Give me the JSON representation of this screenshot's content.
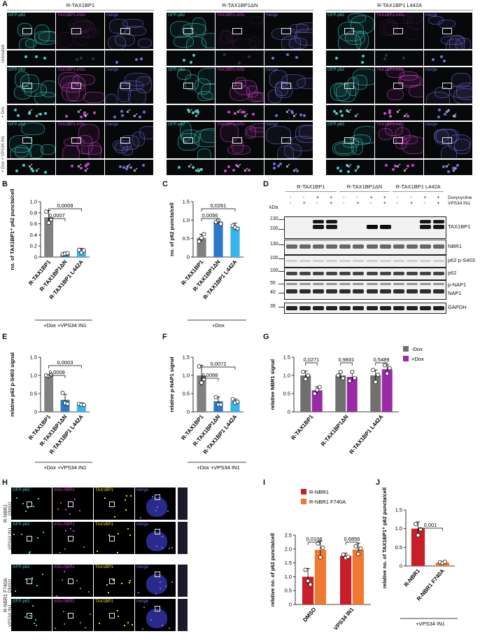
{
  "panel_letters": {
    "A": "A",
    "B": "B",
    "C": "C",
    "D": "D",
    "E": "E",
    "F": "F",
    "G": "G",
    "H": "H",
    "I": "I",
    "J": "J"
  },
  "panel_A": {
    "groups": [
      "R-TAX1BP1",
      "R-TAX1BP1ΔN",
      "R-TAX1BP1 L442A"
    ],
    "rows": [
      "Untreated",
      "+ Dox",
      "+ Dox + VPS34 IN1"
    ],
    "channels": [
      "GFP-p62",
      "TAX1BP1-mSc",
      "merge"
    ],
    "colors": {
      "gfp": "#3fd0c8",
      "msc": "#d040d0",
      "merge": "#7a6ad8"
    }
  },
  "panel_D": {
    "groups": [
      "R-TAX1BP1",
      "R-TAX1BP1ΔN",
      "R-TAX1BP1 L442A"
    ],
    "kda_label": "kDa",
    "treat_labels": [
      "Doxycycline",
      "VPS34 IN1"
    ],
    "dox_signs": [
      "-",
      "-",
      "+",
      "+"
    ],
    "vps_signs": [
      "-",
      "+",
      "-",
      "+"
    ],
    "blots": [
      {
        "label": "TAX1BP1",
        "markers": [
          "130",
          "100"
        ]
      },
      {
        "label": "NBR1",
        "markers": [
          "130"
        ]
      },
      {
        "label": "p62 p-S403",
        "markers": [
          "100"
        ]
      },
      {
        "label": "p62",
        "markers": [
          "100"
        ]
      },
      {
        "label": "p-NAP1",
        "label2": "NAP1",
        "markers": [
          "55",
          "40"
        ]
      },
      {
        "label": "GAPDH",
        "markers": [
          "35"
        ]
      }
    ]
  },
  "panel_H": {
    "rows": [
      "DMSO",
      "VPS34 IN1",
      "DMSO",
      "VPS34 IN1"
    ],
    "group_labels": [
      "R-NBR1",
      "R-NBR1 F740A"
    ],
    "channels": [
      "GFP-p62",
      "mSc-NBR1",
      "TAX1BP1",
      "merge"
    ]
  },
  "chart_data": [
    {
      "panel": "B",
      "type": "bar",
      "ylabel": "no. of TAX1BP1⁺ p62 puncta/cell",
      "categories": [
        "R-TAX1BP1",
        "R-TAX1BP1ΔN",
        "R-TAX1BP1 L442A"
      ],
      "values": [
        0.72,
        0.06,
        0.11
      ],
      "errors": [
        0.12,
        0.03,
        0.05
      ],
      "points": [
        [
          0.82,
          0.62,
          0.68
        ],
        [
          0.05,
          0.06,
          0.07
        ],
        [
          0.13,
          0.08,
          0.12
        ]
      ],
      "ylim": [
        0,
        1.0
      ],
      "yticks": [
        "0",
        "0.2",
        "0.4",
        "0.6",
        "0.8",
        "1.0"
      ],
      "colors": [
        "#808080",
        "#2a78c8",
        "#36b4ec"
      ],
      "treatment": "+Dox +VPS34 IN1",
      "pvalues": [
        {
          "from": 0,
          "to": 1,
          "text": "0,0007"
        },
        {
          "from": 0,
          "to": 2,
          "text": "0,0009"
        }
      ]
    },
    {
      "panel": "C",
      "type": "bar",
      "ylabel": "no. of p62 puncta/cell",
      "categories": [
        "R-TAX1BP1",
        "R-TAX1BP1ΔN",
        "R-TAX1BP1 L442A"
      ],
      "values": [
        0.52,
        0.96,
        0.82
      ],
      "errors": [
        0.1,
        0.05,
        0.1
      ],
      "points": [
        [
          0.42,
          0.52,
          0.62
        ],
        [
          0.95,
          1.0,
          0.9
        ],
        [
          0.85,
          0.8,
          0.77
        ]
      ],
      "ylim": [
        0,
        1.5
      ],
      "yticks": [
        "0",
        "0.5",
        "1.0",
        "1.5"
      ],
      "colors": [
        "#808080",
        "#2a78c8",
        "#36b4ec"
      ],
      "treatment": "+Dox",
      "pvalues": [
        {
          "from": 0,
          "to": 1,
          "text": "0,0056"
        },
        {
          "from": 0,
          "to": 2,
          "text": "0,0261"
        }
      ]
    },
    {
      "panel": "E",
      "type": "bar",
      "ylabel": "relative p62 p-S403 signal",
      "categories": [
        "R-TAX1BP1",
        "R-TAX1BP1ΔN",
        "R-TAX1BP1 L442A"
      ],
      "values": [
        1.0,
        0.33,
        0.21
      ],
      "errors": [
        0.03,
        0.15,
        0.04
      ],
      "points": [
        [
          1.0,
          0.98,
          1.02
        ],
        [
          0.52,
          0.24,
          0.22
        ],
        [
          0.22,
          0.2,
          0.19
        ]
      ],
      "ylim": [
        0,
        1.5
      ],
      "yticks": [
        "0",
        "0.5",
        "1.0",
        "1.5"
      ],
      "colors": [
        "#808080",
        "#2a78c8",
        "#36b4ec"
      ],
      "treatment": "+Dox +VPS34 IN1",
      "pvalues": [
        {
          "from": 0,
          "to": 1,
          "text": "0,0008"
        },
        {
          "from": 0,
          "to": 2,
          "text": "0,0003"
        }
      ]
    },
    {
      "panel": "F",
      "type": "bar",
      "ylabel": "relative p-NAP1 signal",
      "categories": [
        "R-TAX1BP1",
        "R-TAX1BP1ΔN",
        "R-TAX1BP1 L442A"
      ],
      "values": [
        1.0,
        0.29,
        0.29
      ],
      "errors": [
        0.28,
        0.12,
        0.06
      ],
      "points": [
        [
          1.25,
          0.8,
          0.9
        ],
        [
          0.4,
          0.2,
          0.2
        ],
        [
          0.35,
          0.25,
          0.28
        ]
      ],
      "ylim": [
        0,
        1.5
      ],
      "yticks": [
        "0",
        "0.5",
        "1.0",
        "1.5"
      ],
      "colors": [
        "#808080",
        "#2a78c8",
        "#36b4ec"
      ],
      "treatment": "+Dox +VPS34 IN1",
      "pvalues": [
        {
          "from": 0,
          "to": 1,
          "text": "0,0068"
        },
        {
          "from": 0,
          "to": 2,
          "text": "0,0072"
        }
      ]
    },
    {
      "panel": "G",
      "type": "bar",
      "ylabel": "relative NBR1 signal",
      "categories": [
        "R-TAX1BP1",
        "R-TAX1BP1ΔN",
        "R-TAX1BP1 L442A"
      ],
      "series": [
        {
          "name": "-Dox",
          "values": [
            1.0,
            1.0,
            1.0
          ],
          "errors": [
            0.12,
            0.08,
            0.15
          ],
          "points": [
            [
              1.1,
              0.9,
              1.0
            ],
            [
              1.0,
              1.1,
              0.92
            ],
            [
              1.15,
              0.82,
              1.02
            ]
          ]
        },
        {
          "name": "+Dox",
          "values": [
            0.59,
            0.96,
            1.17
          ],
          "errors": [
            0.1,
            0.13,
            0.12
          ],
          "points": [
            [
              0.5,
              0.6,
              0.68
            ],
            [
              0.85,
              1.1,
              0.93
            ],
            [
              1.28,
              1.05,
              1.2
            ]
          ]
        }
      ],
      "ylim": [
        0,
        1.5
      ],
      "yticks": [
        "0",
        "0.5",
        "1.0",
        "1.5"
      ],
      "colors": [
        "#707070",
        "#9a2aa8"
      ],
      "pvalues": [
        "0,0271",
        "0,9831",
        "0,5489"
      ]
    },
    {
      "panel": "I",
      "type": "bar",
      "ylabel": "relative no. of p62 puncta/cell",
      "categories": [
        "DMSO",
        "VPS34 IN1"
      ],
      "series": [
        {
          "name": "R-NBR1",
          "values": [
            1.0,
            1.75
          ],
          "errors": [
            0.3,
            0.1
          ],
          "points": [
            [
              1.25,
              0.85,
              0.72
            ],
            [
              1.8,
              1.68,
              1.72
            ]
          ]
        },
        {
          "name": "R-NBR1 F740A",
          "values": [
            1.97,
            1.98
          ],
          "errors": [
            0.32,
            0.22
          ],
          "points": [
            [
              2.2,
              1.7,
              2.05
            ],
            [
              2.1,
              1.82,
              2.02
            ]
          ]
        }
      ],
      "ylim": [
        0,
        2.5
      ],
      "yticks": [
        "0",
        "0.5",
        "1.0",
        "1.5",
        "2.0",
        "2.5"
      ],
      "colors": [
        "#c81e2a",
        "#f07830"
      ],
      "pvalues": [
        "0,0108",
        "0,6856"
      ]
    },
    {
      "panel": "J",
      "type": "bar",
      "ylabel": "relative no. of TAX1BP1⁺ p62 puncta/cell",
      "categories": [
        "R-NBR1",
        "R-NBR1 F740A"
      ],
      "values": [
        1.0,
        0.09
      ],
      "errors": [
        0.18,
        0.03
      ],
      "points": [
        [
          1.12,
          0.82,
          0.98
        ],
        [
          0.1,
          0.08,
          0.11
        ]
      ],
      "ylim": [
        0,
        1.5
      ],
      "yticks": [
        "0",
        "0.5",
        "1.0",
        "1.5"
      ],
      "colors": [
        "#c81e2a",
        "#f07830"
      ],
      "treatment": "+VPS34 IN1",
      "pvalues": [
        {
          "from": 0,
          "to": 1,
          "text": "0,001"
        }
      ]
    }
  ]
}
